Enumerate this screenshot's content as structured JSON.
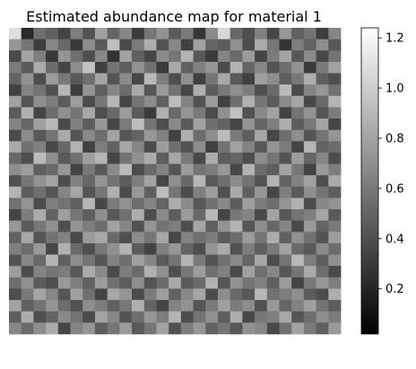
{
  "chart_data": {
    "type": "heatmap",
    "title": "Estimated abundance map for material 1",
    "colormap": "gray",
    "grid": false,
    "axes_visible": false,
    "colorbar": {
      "placement": "right",
      "range": [
        0.02,
        1.24
      ],
      "ticks": [
        0.2,
        0.4,
        0.6,
        0.8,
        1.0,
        1.2
      ],
      "tick_labels": [
        "0.2",
        "0.4",
        "0.6",
        "0.8",
        "1.0",
        "1.2"
      ]
    },
    "rows": 27,
    "cols": 27,
    "values": [
      [
        1.08,
        0.22,
        0.55,
        0.48,
        0.34,
        0.62,
        0.41,
        0.78,
        0.5,
        0.66,
        0.3,
        0.58,
        0.72,
        0.45,
        0.6,
        0.28,
        0.68,
        1.05,
        0.52,
        0.4,
        0.63,
        0.36,
        0.74,
        0.48,
        0.57,
        0.31,
        0.66
      ],
      [
        0.74,
        0.58,
        0.31,
        0.66,
        0.52,
        0.29,
        0.7,
        0.45,
        0.93,
        0.38,
        0.61,
        0.85,
        0.42,
        0.67,
        0.33,
        0.78,
        0.5,
        0.46,
        0.71,
        0.39,
        0.84,
        0.58,
        0.27,
        0.62,
        0.49,
        0.7,
        0.44
      ],
      [
        0.37,
        0.8,
        0.62,
        0.29,
        0.73,
        0.55,
        0.4,
        0.67,
        0.26,
        0.79,
        0.48,
        0.35,
        0.69,
        0.58,
        0.88,
        0.44,
        0.3,
        0.65,
        0.52,
        0.76,
        0.35,
        0.61,
        0.8,
        0.43,
        0.68,
        0.36,
        0.57
      ],
      [
        0.61,
        0.45,
        0.84,
        0.53,
        0.35,
        0.69,
        0.95,
        0.32,
        0.58,
        0.47,
        0.72,
        0.56,
        0.3,
        0.83,
        0.49,
        0.63,
        0.73,
        0.38,
        0.87,
        0.51,
        0.66,
        0.42,
        0.55,
        0.72,
        0.3,
        0.61,
        0.79
      ],
      [
        0.5,
        0.72,
        0.39,
        0.76,
        0.6,
        0.44,
        0.55,
        0.81,
        0.42,
        0.68,
        0.36,
        0.9,
        0.62,
        0.4,
        0.71,
        0.32,
        0.58,
        0.82,
        0.45,
        0.33,
        0.78,
        0.69,
        0.47,
        0.59,
        0.85,
        0.48,
        0.4
      ],
      [
        0.33,
        0.64,
        0.57,
        0.41,
        0.88,
        0.31,
        0.73,
        0.48,
        0.66,
        0.54,
        0.83,
        0.43,
        0.75,
        0.57,
        0.36,
        0.85,
        0.47,
        0.59,
        0.7,
        0.62,
        0.4,
        0.53,
        0.91,
        0.38,
        0.65,
        0.74,
        0.56
      ],
      [
        0.79,
        0.42,
        0.7,
        0.62,
        0.46,
        0.77,
        0.38,
        0.59,
        0.89,
        0.35,
        0.57,
        0.69,
        0.48,
        0.92,
        0.64,
        0.41,
        0.76,
        0.33,
        0.55,
        0.86,
        0.58,
        0.45,
        0.68,
        0.81,
        0.37,
        0.52,
        0.88
      ],
      [
        0.46,
        0.86,
        0.35,
        0.54,
        0.71,
        0.58,
        0.82,
        0.4,
        0.52,
        0.76,
        0.45,
        0.3,
        0.86,
        0.52,
        0.73,
        0.6,
        0.38,
        0.71,
        0.94,
        0.41,
        0.67,
        0.79,
        0.34,
        0.57,
        0.72,
        0.43,
        0.61
      ],
      [
        0.65,
        0.51,
        0.78,
        0.9,
        0.38,
        0.63,
        0.47,
        0.74,
        0.36,
        0.61,
        0.93,
        0.58,
        0.4,
        0.68,
        0.45,
        0.8,
        0.55,
        0.49,
        0.35,
        0.73,
        0.5,
        0.62,
        0.85,
        0.46,
        0.6,
        0.81,
        0.35
      ],
      [
        0.38,
        0.69,
        0.44,
        0.58,
        0.83,
        0.42,
        0.67,
        0.55,
        0.79,
        0.43,
        0.5,
        0.75,
        0.63,
        0.34,
        0.86,
        0.53,
        0.7,
        0.91,
        0.6,
        0.47,
        0.82,
        0.36,
        0.55,
        0.7,
        0.42,
        0.58,
        0.73
      ],
      [
        0.83,
        0.56,
        0.63,
        0.37,
        0.52,
        0.87,
        0.33,
        0.62,
        0.48,
        0.82,
        0.66,
        0.39,
        0.77,
        0.55,
        0.42,
        0.69,
        0.32,
        0.57,
        0.79,
        0.64,
        0.44,
        0.73,
        0.61,
        0.35,
        0.88,
        0.49,
        0.54
      ],
      [
        0.52,
        0.4,
        0.91,
        0.69,
        0.45,
        0.56,
        0.78,
        0.88,
        0.35,
        0.57,
        0.71,
        0.84,
        0.47,
        0.81,
        0.6,
        0.37,
        0.84,
        0.46,
        0.51,
        0.39,
        0.69,
        0.58,
        0.42,
        0.77,
        0.51,
        0.66,
        0.39
      ],
      [
        0.7,
        0.77,
        0.48,
        0.52,
        0.74,
        0.35,
        0.6,
        0.45,
        0.68,
        0.91,
        0.38,
        0.52,
        0.64,
        0.43,
        0.76,
        0.58,
        0.62,
        0.74,
        0.36,
        0.87,
        0.53,
        0.47,
        0.8,
        0.59,
        0.34,
        0.75,
        0.62
      ],
      [
        0.41,
        0.59,
        0.72,
        0.8,
        0.39,
        0.64,
        0.51,
        0.73,
        0.57,
        0.46,
        0.62,
        0.79,
        0.36,
        0.7,
        0.52,
        0.89,
        0.45,
        0.55,
        0.68,
        0.57,
        0.42,
        0.88,
        0.5,
        0.64,
        0.79,
        0.4,
        0.83
      ],
      [
        0.88,
        0.47,
        0.55,
        0.43,
        0.66,
        0.81,
        0.42,
        0.58,
        0.86,
        0.38,
        0.75,
        0.47,
        0.92,
        0.58,
        0.38,
        0.63,
        0.77,
        0.4,
        0.83,
        0.48,
        0.74,
        0.36,
        0.62,
        0.45,
        0.7,
        0.58,
        0.47
      ],
      [
        0.56,
        0.73,
        0.38,
        0.62,
        0.57,
        0.48,
        0.89,
        0.36,
        0.61,
        0.72,
        0.54,
        0.65,
        0.5,
        0.84,
        0.69,
        0.44,
        0.56,
        0.67,
        0.46,
        0.78,
        0.61,
        0.55,
        0.73,
        0.86,
        0.38,
        0.67,
        0.72
      ],
      [
        0.35,
        0.62,
        0.84,
        0.49,
        0.78,
        0.58,
        0.47,
        0.7,
        0.44,
        0.56,
        0.85,
        0.39,
        0.68,
        0.47,
        0.76,
        0.52,
        0.9,
        0.35,
        0.59,
        0.65,
        0.37,
        0.8,
        0.44,
        0.58,
        0.63,
        0.81,
        0.45
      ],
      [
        0.74,
        0.45,
        0.59,
        0.71,
        0.4,
        0.73,
        0.62,
        0.54,
        0.79,
        0.66,
        0.41,
        0.73,
        0.57,
        0.62,
        0.4,
        0.81,
        0.48,
        0.72,
        0.87,
        0.43,
        0.7,
        0.52,
        0.66,
        0.37,
        0.75,
        0.5,
        0.6
      ],
      [
        0.49,
        0.82,
        0.43,
        0.57,
        0.65,
        0.37,
        0.76,
        0.83,
        0.52,
        0.4,
        0.69,
        0.58,
        0.81,
        0.36,
        0.64,
        0.55,
        0.61,
        0.46,
        0.54,
        0.76,
        0.58,
        0.85,
        0.48,
        0.71,
        0.56,
        0.42,
        0.77
      ],
      [
        0.63,
        0.54,
        0.75,
        0.36,
        0.86,
        0.52,
        0.4,
        0.59,
        0.71,
        0.87,
        0.46,
        0.34,
        0.63,
        0.74,
        0.5,
        0.39,
        0.73,
        0.84,
        0.41,
        0.62,
        0.47,
        0.6,
        0.79,
        0.52,
        0.44,
        0.68,
        0.53
      ],
      [
        0.42,
        0.67,
        0.52,
        0.88,
        0.48,
        0.69,
        0.57,
        0.43,
        0.64,
        0.55,
        0.78,
        0.66,
        0.45,
        0.57,
        0.88,
        0.6,
        0.42,
        0.56,
        0.68,
        0.5,
        0.82,
        0.39,
        0.57,
        0.9,
        0.62,
        0.47,
        0.71
      ],
      [
        0.77,
        0.39,
        0.65,
        0.58,
        0.61,
        0.44,
        0.84,
        0.68,
        0.38,
        0.62,
        0.53,
        0.86,
        0.71,
        0.4,
        0.59,
        0.76,
        0.55,
        0.63,
        0.37,
        0.79,
        0.55,
        0.67,
        0.43,
        0.58,
        0.83,
        0.54,
        0.38
      ],
      [
        0.55,
        0.71,
        0.46,
        0.4,
        0.75,
        0.62,
        0.49,
        0.77,
        0.56,
        0.47,
        0.7,
        0.42,
        0.54,
        0.83,
        0.45,
        0.52,
        0.86,
        0.43,
        0.72,
        0.58,
        0.64,
        0.48,
        0.76,
        0.35,
        0.6,
        0.74,
        0.62
      ],
      [
        0.39,
        0.6,
        0.81,
        0.66,
        0.43,
        0.79,
        0.55,
        0.35,
        0.82,
        0.73,
        0.38,
        0.61,
        0.77,
        0.49,
        0.67,
        0.81,
        0.38,
        0.69,
        0.52,
        0.44,
        0.9,
        0.56,
        0.62,
        0.7,
        0.46,
        0.39,
        0.85
      ],
      [
        0.8,
        0.48,
        0.57,
        0.73,
        0.54,
        0.41,
        0.7,
        0.62,
        0.48,
        0.59,
        0.86,
        0.5,
        0.35,
        0.64,
        0.72,
        0.43,
        0.6,
        0.78,
        0.61,
        0.69,
        0.41,
        0.75,
        0.51,
        0.64,
        0.78,
        0.57,
        0.46
      ],
      [
        0.47,
        0.85,
        0.4,
        0.5,
        0.68,
        0.57,
        0.38,
        0.8,
        0.66,
        0.42,
        0.55,
        0.74,
        0.62,
        0.88,
        0.39,
        0.57,
        0.71,
        0.47,
        0.85,
        0.36,
        0.59,
        0.63,
        0.82,
        0.43,
        0.55,
        0.7,
        0.61
      ],
      [
        0.66,
        0.53,
        0.7,
        0.84,
        0.36,
        0.65,
        0.73,
        0.47,
        0.58,
        0.76,
        0.44,
        0.58,
        0.79,
        0.41,
        0.62,
        0.74,
        0.49,
        0.58,
        0.44,
        0.72,
        0.66,
        0.37,
        0.55,
        0.79,
        0.61,
        0.48,
        0.75
      ]
    ]
  }
}
